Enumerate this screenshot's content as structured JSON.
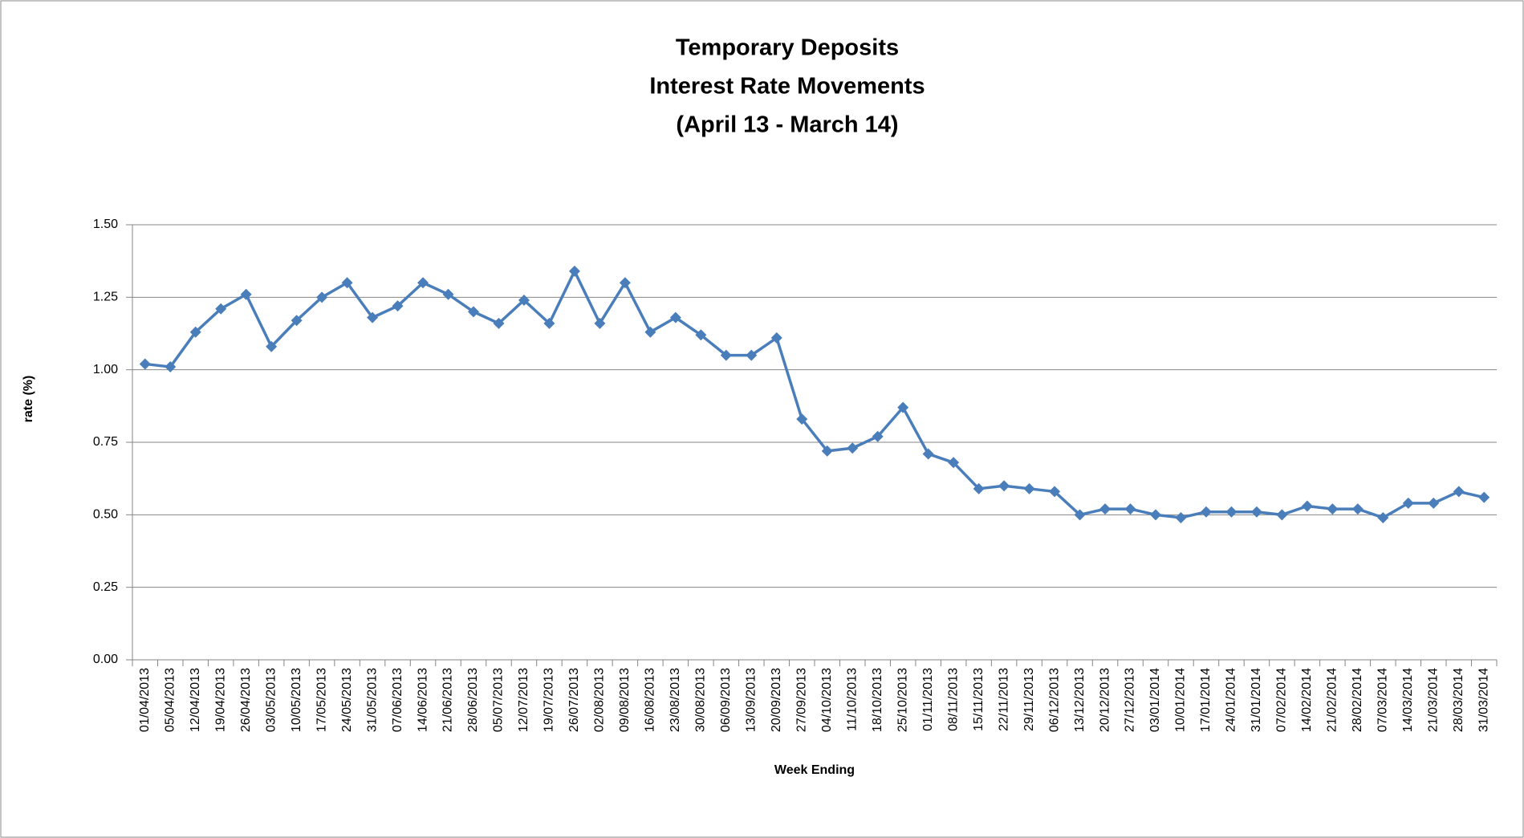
{
  "chart_data": {
    "type": "line",
    "title": [
      "Temporary Deposits",
      "Interest Rate Movements",
      "(April 13 - March 14)"
    ],
    "x_label": "Week Ending",
    "y_label": "rate (%)",
    "categories": [
      "01/04/2013",
      "05/04/2013",
      "12/04/2013",
      "19/04/2013",
      "26/04/2013",
      "03/05/2013",
      "10/05/2013",
      "17/05/2013",
      "24/05/2013",
      "31/05/2013",
      "07/06/2013",
      "14/06/2013",
      "21/06/2013",
      "28/06/2013",
      "05/07/2013",
      "12/07/2013",
      "19/07/2013",
      "26/07/2013",
      "02/08/2013",
      "09/08/2013",
      "16/08/2013",
      "23/08/2013",
      "30/08/2013",
      "06/09/2013",
      "13/09/2013",
      "20/09/2013",
      "27/09/2013",
      "04/10/2013",
      "11/10/2013",
      "18/10/2013",
      "25/10/2013",
      "01/11/2013",
      "08/11/2013",
      "15/11/2013",
      "22/11/2013",
      "29/11/2013",
      "06/12/2013",
      "13/12/2013",
      "20/12/2013",
      "27/12/2013",
      "03/01/2014",
      "10/01/2014",
      "17/01/2014",
      "24/01/2014",
      "31/01/2014",
      "07/02/2014",
      "14/02/2014",
      "21/02/2014",
      "28/02/2014",
      "07/03/2014",
      "14/03/2014",
      "21/03/2014",
      "28/03/2014",
      "31/03/2014"
    ],
    "values": [
      1.02,
      1.01,
      1.13,
      1.21,
      1.26,
      1.08,
      1.17,
      1.25,
      1.3,
      1.18,
      1.22,
      1.3,
      1.26,
      1.2,
      1.16,
      1.24,
      1.16,
      1.34,
      1.16,
      1.3,
      1.13,
      1.18,
      1.12,
      1.05,
      1.05,
      1.11,
      0.83,
      0.72,
      0.73,
      0.77,
      0.87,
      0.71,
      0.68,
      0.59,
      0.6,
      0.59,
      0.58,
      0.5,
      0.52,
      0.52,
      0.5,
      0.49,
      0.51,
      0.51,
      0.51,
      0.5,
      0.53,
      0.52,
      0.52,
      0.49,
      0.54,
      0.54,
      0.58,
      0.56
    ],
    "color": "#4a7ebb",
    "ylim": [
      0,
      1.5
    ],
    "yticks": [
      {
        "value": 0,
        "label": "0.00"
      },
      {
        "value": 0.25,
        "label": "0.25"
      },
      {
        "value": 0.5,
        "label": "0.50"
      },
      {
        "value": 0.75,
        "label": "0.75"
      },
      {
        "value": 1,
        "label": "1.00"
      },
      {
        "value": 1.25,
        "label": "1.25"
      },
      {
        "value": 1.5,
        "label": "1.50"
      }
    ],
    "grid": true
  }
}
